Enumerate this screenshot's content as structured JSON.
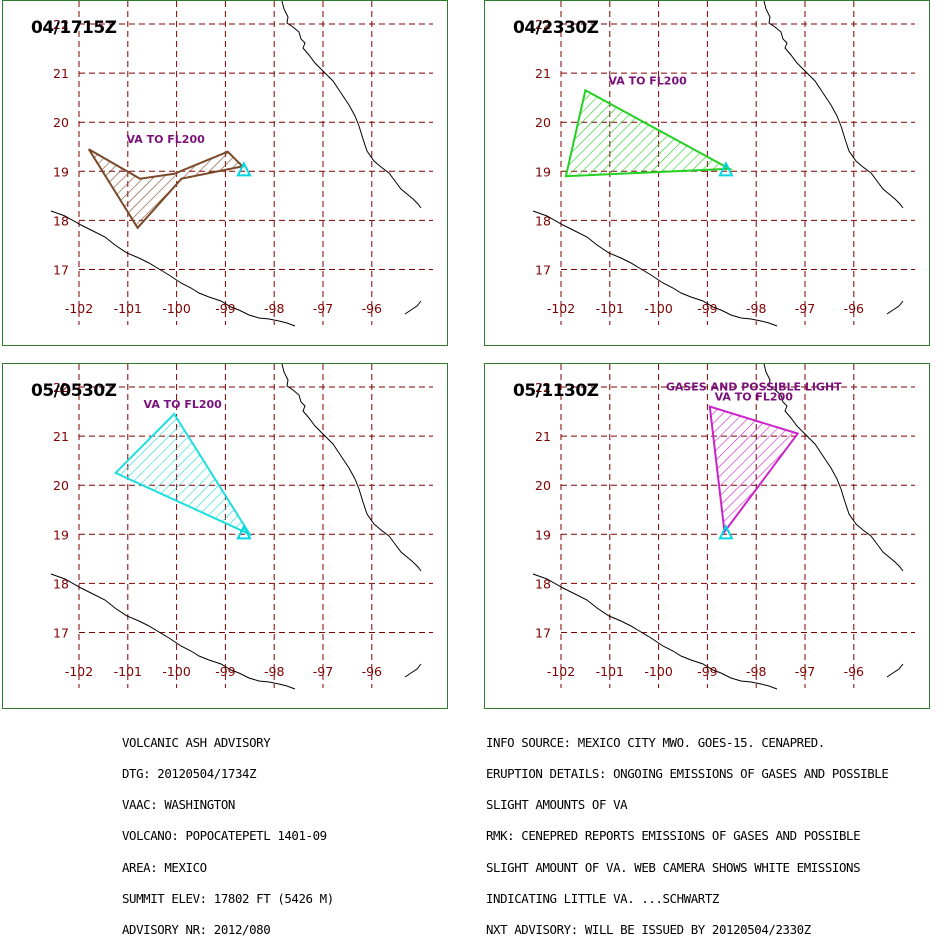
{
  "colors": {
    "grid": "#800000",
    "coast": "#000000",
    "frame": "#2e7d2e",
    "label": "#7b127b",
    "volcano": "#00d8e0"
  },
  "axis": {
    "x_ticks": [
      "-102",
      "-101",
      "-100",
      "-99",
      "-98",
      "-97",
      "-96"
    ],
    "y_ticks": [
      "22",
      "21",
      "20",
      "19",
      "18",
      "17"
    ]
  },
  "panels": [
    {
      "time": "04/1715Z",
      "label_lines": [
        "VA TO FL200"
      ],
      "polygon_color": "#7a4a2a",
      "polygon_lonlat": [
        [
          -101.8,
          19.45
        ],
        [
          -100.75,
          18.85
        ],
        [
          -100.05,
          18.95
        ],
        [
          -98.95,
          19.4
        ],
        [
          -98.65,
          19.1
        ],
        [
          -99.9,
          18.85
        ],
        [
          -100.8,
          17.85
        ],
        [
          -101.8,
          19.45
        ]
      ]
    },
    {
      "time": "04/2330Z",
      "label_lines": [
        "VA TO FL200"
      ],
      "polygon_color": "#22d022",
      "polygon_lonlat": [
        [
          -101.5,
          20.65
        ],
        [
          -98.55,
          19.05
        ],
        [
          -101.9,
          18.9
        ],
        [
          -101.5,
          20.65
        ]
      ]
    },
    {
      "time": "05/0530Z",
      "label_lines": [
        "VA TO FL200"
      ],
      "polygon_color": "#20dede",
      "polygon_lonlat": [
        [
          -100.05,
          21.45
        ],
        [
          -98.5,
          19.0
        ],
        [
          -101.25,
          20.25
        ],
        [
          -100.05,
          21.45
        ]
      ]
    },
    {
      "time": "05/1130Z",
      "label_lines": [
        "GASES AND POSSIBLE LIGHT",
        "VA TO FL200"
      ],
      "polygon_color": "#cc22cc",
      "polygon_lonlat": [
        [
          -98.95,
          21.6
        ],
        [
          -97.15,
          21.05
        ],
        [
          -98.65,
          19.05
        ],
        [
          -98.95,
          21.6
        ]
      ]
    }
  ],
  "volcano_lonlat": [
    -98.62,
    19.02
  ],
  "advisory": {
    "left_lines": [
      "VOLCANIC ASH ADVISORY",
      "DTG: 20120504/1734Z",
      "VAAC: WASHINGTON",
      "VOLCANO: POPOCATEPETL 1401-09",
      "AREA: MEXICO",
      "SUMMIT ELEV: 17802 FT (5426 M)",
      "ADVISORY NR: 2012/080"
    ],
    "right_lines": [
      "INFO SOURCE: MEXICO CITY MWO. GOES-15. CENAPRED.",
      "ERUPTION DETAILS: ONGOING EMISSIONS OF GASES AND POSSIBLE",
      "SLIGHT AMOUNTS OF VA",
      "RMK: CENEPRED REPORTS EMISSIONS OF GASES AND POSSIBLE",
      "SLIGHT AMOUNT OF VA. WEB CAMERA SHOWS WHITE EMISSIONS",
      "INDICATING LITTLE VA. ...SCHWARTZ",
      "NXT ADVISORY: WILL BE ISSUED BY 20120504/2330Z"
    ]
  }
}
